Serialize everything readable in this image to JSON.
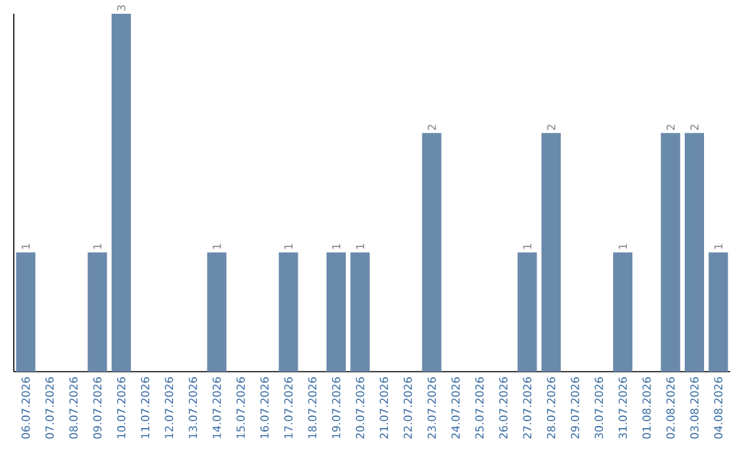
{
  "chart_data": {
    "type": "bar",
    "categories": [
      "06.07.2026",
      "07.07.2026",
      "08.07.2026",
      "09.07.2026",
      "10.07.2026",
      "11.07.2026",
      "12.07.2026",
      "13.07.2026",
      "14.07.2026",
      "15.07.2026",
      "16.07.2026",
      "17.07.2026",
      "18.07.2026",
      "19.07.2026",
      "20.07.2026",
      "21.07.2026",
      "22.07.2026",
      "23.07.2026",
      "24.07.2026",
      "25.07.2026",
      "26.07.2026",
      "27.07.2026",
      "28.07.2026",
      "29.07.2026",
      "30.07.2026",
      "31.07.2026",
      "01.08.2026",
      "02.08.2026",
      "03.08.2026",
      "04.08.2026"
    ],
    "values": [
      1,
      0,
      0,
      1,
      3,
      0,
      0,
      0,
      1,
      0,
      0,
      1,
      0,
      1,
      1,
      0,
      0,
      2,
      0,
      0,
      0,
      1,
      2,
      0,
      0,
      1,
      0,
      2,
      2,
      1
    ],
    "value_labels": [
      "1",
      null,
      null,
      "1",
      "3",
      null,
      null,
      null,
      "1",
      null,
      null,
      "1",
      null,
      "1",
      "1",
      null,
      null,
      "2",
      null,
      null,
      null,
      "1",
      "2",
      null,
      null,
      "1",
      null,
      "2",
      "2",
      "1"
    ],
    "color": "#6a8aab"
  }
}
